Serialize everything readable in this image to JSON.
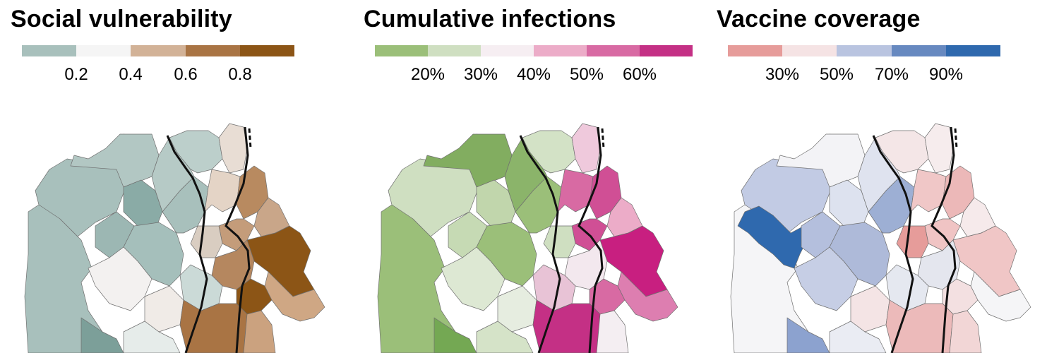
{
  "panels": [
    {
      "title": "Social vulnerability",
      "colors": [
        "#a8c0bc",
        "#f5f5f5",
        "#d2b297",
        "#a97444",
        "#8c5516"
      ],
      "ticks": [
        "0.2",
        "0.4",
        "0.6",
        "0.8"
      ]
    },
    {
      "title": "Cumulative infections",
      "colors": [
        "#9bbf79",
        "#cfdfc1",
        "#f6eef2",
        "#ecacc8",
        "#d86aa3",
        "#c43085"
      ],
      "ticks": [
        "20%",
        "30%",
        "40%",
        "50%",
        "60%"
      ]
    },
    {
      "title": "Vaccine coverage",
      "colors": [
        "#e69c9a",
        "#f5e3e4",
        "#b9c4e0",
        "#6789c0",
        "#2f69ae"
      ],
      "ticks": [
        "30%",
        "50%",
        "70%",
        "90%"
      ]
    }
  ]
}
